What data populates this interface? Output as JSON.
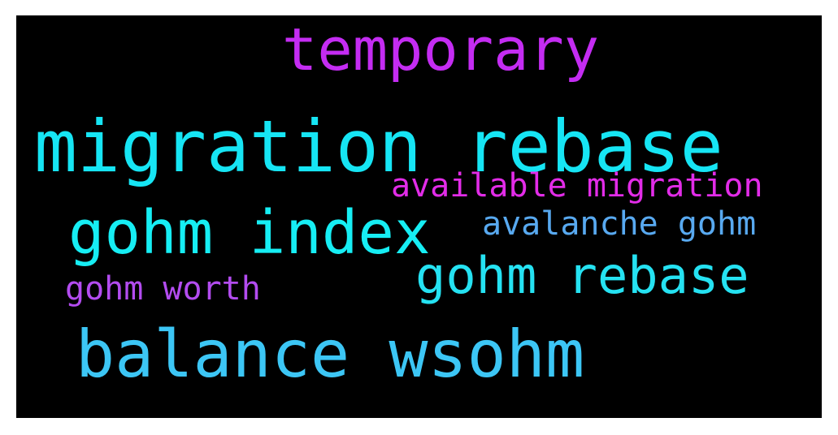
{
  "words": [
    {
      "text": "temporary",
      "color": "#c42cf2"
    },
    {
      "text": "migration rebase",
      "color": "#16e5f4"
    },
    {
      "text": "available migration",
      "color": "#e22ce8"
    },
    {
      "text": "gohm index",
      "color": "#16eef4"
    },
    {
      "text": "avalanche gohm",
      "color": "#58a9f0"
    },
    {
      "text": "gohm rebase",
      "color": "#25e2f2"
    },
    {
      "text": "gohm worth",
      "color": "#b34cf0"
    },
    {
      "text": "balance wsohm",
      "color": "#3cc6f5"
    }
  ]
}
